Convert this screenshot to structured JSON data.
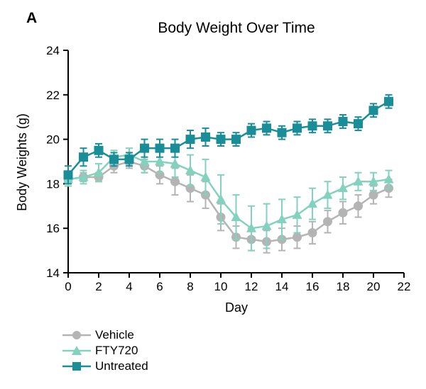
{
  "panel_label": "A",
  "chart_data": {
    "type": "line",
    "title": "Body Weight Over Time",
    "xlabel": "Day",
    "ylabel": "Body Weights (g)",
    "xlim": [
      0,
      22
    ],
    "ylim": [
      14,
      24
    ],
    "xticks": [
      0,
      2,
      4,
      6,
      8,
      10,
      12,
      14,
      16,
      18,
      20,
      22
    ],
    "yticks": [
      14,
      16,
      18,
      20,
      22,
      24
    ],
    "grid": false,
    "legend_position": "bottom-left",
    "x": [
      0,
      1,
      2,
      3,
      4,
      5,
      6,
      7,
      8,
      9,
      10,
      11,
      12,
      13,
      14,
      15,
      16,
      17,
      18,
      19,
      20,
      21
    ],
    "series": [
      {
        "name": "Vehicle",
        "marker": "circle",
        "color": "#b4b4b4",
        "values": [
          18.2,
          18.3,
          18.3,
          18.8,
          19.0,
          18.8,
          18.4,
          18.1,
          17.8,
          17.5,
          16.5,
          15.6,
          15.5,
          15.4,
          15.5,
          15.6,
          15.8,
          16.3,
          16.7,
          17.0,
          17.5,
          17.8
        ],
        "errors": [
          0.2,
          0.2,
          0.2,
          0.3,
          0.3,
          0.3,
          0.4,
          0.6,
          0.6,
          0.6,
          0.6,
          0.5,
          0.5,
          0.5,
          0.5,
          0.5,
          0.5,
          0.5,
          0.5,
          0.5,
          0.4,
          0.4
        ]
      },
      {
        "name": "FTY720",
        "marker": "triangle",
        "color": "#82d2be",
        "values": [
          18.2,
          18.3,
          18.5,
          19.2,
          19.3,
          19.0,
          19.0,
          18.9,
          18.6,
          18.3,
          17.3,
          16.5,
          16.0,
          16.1,
          16.4,
          16.6,
          17.1,
          17.5,
          17.8,
          18.1,
          18.1,
          18.2
        ],
        "errors": [
          0.3,
          0.3,
          0.4,
          0.3,
          0.3,
          0.5,
          0.5,
          0.6,
          0.7,
          0.8,
          1.1,
          1.0,
          1.0,
          1.0,
          0.9,
          0.8,
          0.7,
          0.6,
          0.5,
          0.4,
          0.4,
          0.4
        ]
      },
      {
        "name": "Untreated",
        "marker": "square",
        "color": "#1a8e98",
        "values": [
          18.4,
          19.2,
          19.5,
          19.1,
          19.1,
          19.6,
          19.6,
          19.6,
          20.0,
          20.1,
          20.0,
          20.0,
          20.4,
          20.5,
          20.3,
          20.5,
          20.6,
          20.6,
          20.8,
          20.7,
          21.3,
          21.7
        ],
        "errors": [
          0.4,
          0.4,
          0.3,
          0.3,
          0.3,
          0.4,
          0.4,
          0.4,
          0.4,
          0.4,
          0.3,
          0.3,
          0.3,
          0.3,
          0.3,
          0.3,
          0.3,
          0.3,
          0.3,
          0.3,
          0.3,
          0.3
        ]
      }
    ]
  }
}
